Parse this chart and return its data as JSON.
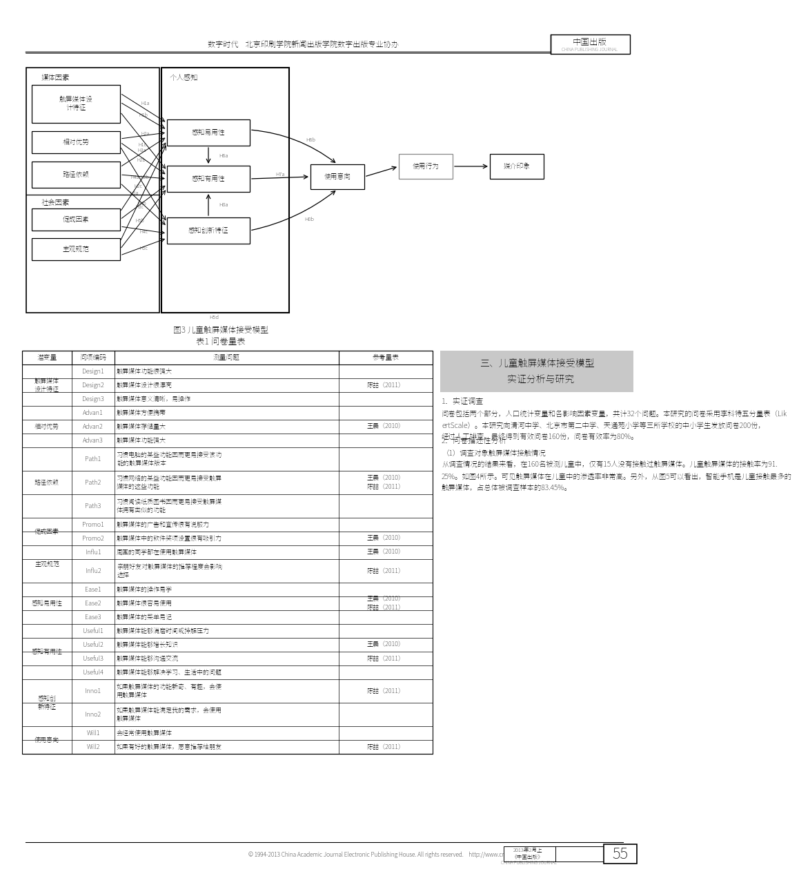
{
  "page_width": 9.2,
  "page_height": 12.49,
  "bg_color": "#ffffff",
  "header_text_left": "数字时代    北京印刷学院新闻出版学院数字出版专业协办",
  "header_text_right": "中国出版",
  "header_sub_right": "CHINA PUBLISHING JOURNAL",
  "diagram_title": "图3 儿童触屏媒体接受模型",
  "table_title": "表1 问卷量表",
  "table_headers": [
    "潜变量",
    "问项编码",
    "测量问题",
    "参考量表"
  ],
  "table_rows": [
    [
      "触屏媒体\n设计特征",
      "Design1",
      "触屏媒体功能很强大",
      ""
    ],
    [
      "",
      "Design2",
      "触屏媒体设计很漂亮",
      "陈喆（2011）"
    ],
    [
      "",
      "Design3",
      "触屏媒体意义清晰，易操作",
      ""
    ],
    [
      "相对优势",
      "Advan1",
      "触屏媒体方便携带",
      ""
    ],
    [
      "",
      "Advan2",
      "触屏媒体存储量大",
      "王晨（2010）"
    ],
    [
      "",
      "Advan3",
      "触屏媒体功能强大",
      ""
    ],
    [
      "路径依赖",
      "Path1",
      "习惯电脑的某些功能因而更易接受该功\n能的触屏媒体版本",
      ""
    ],
    [
      "",
      "Path2",
      "习惯网络的某些功能因而更易接受触屏\n媒体的这些功能",
      "王晨（2010）\n陈喆（2011）"
    ],
    [
      "",
      "Path3",
      "习惯阅读纸质图书因而更易接受触屏媒\n体拥有类似的功能",
      ""
    ],
    [
      "促成因素",
      "Promo1",
      "触屏媒体的广告和宣传很有说服力",
      ""
    ],
    [
      "",
      "Promo2",
      "触屏媒体中的软件奖项设置很有吸引力",
      "王晨（2010）"
    ],
    [
      "主观规范",
      "Influ1",
      "周围的同学都在使用触屏媒体",
      "王晨（2010）"
    ],
    [
      "",
      "Influ2",
      "亲朋好友对触屏媒体的推荐程度会影响\n选择",
      "陈喆（2011）"
    ],
    [
      "感知易用性",
      "Ease1",
      "触屏媒体的操作易学",
      ""
    ],
    [
      "",
      "Ease2",
      "触屏媒体很容易使用",
      "王晨（2010）\n陈喆（2011）"
    ],
    [
      "",
      "Ease3",
      "触屏媒体的菜单易记",
      ""
    ],
    [
      "感知有用性",
      "Useful1",
      "触屏媒体能够消磨时间或排解压力",
      ""
    ],
    [
      "",
      "Useful2",
      "触屏媒体能够增长知识",
      "王晨（2010）"
    ],
    [
      "",
      "Useful3",
      "触屏媒体能够沟通交流",
      "陈喆（2011）"
    ],
    [
      "",
      "Useful4",
      "触屏媒体能够解决学习、生活中的问题",
      ""
    ],
    [
      "感知创\n新特征",
      "Inno1",
      "如果触屏媒体的功能新奇、有趣，会使\n用触屏媒体",
      "陈喆（2011）"
    ],
    [
      "",
      "Inno2",
      "如果触屏媒体能满足我的需求，会使用\n触屏媒体",
      ""
    ],
    [
      "使用意向",
      "Will1",
      "会经常使用触屏媒体",
      ""
    ],
    [
      "",
      "Will2",
      "如果有好的触屏媒体，愿意推荐给朋友",
      "陈喆（2011）"
    ]
  ],
  "right_box_title": "三、儿童触屏媒体接受模型\n    实证分析与研究",
  "right_col_lines": [
    {
      "text": "1．实证调查",
      "indent": 0,
      "style": "normal",
      "size": 8
    },
    {
      "text": "问卷包括两个部分，人口统计变量和各影响因素变量，共计32个问题。本研究的问卷采用李科特五分量表（LikertScale）。本研究向清河中学、北京市第二中学、天通苑小学等三所学校的中小学生发放问卷200份，经过人工排查，最终得到有效问卷160份，问卷有效率为80%。",
      "indent": 0,
      "style": "normal",
      "size": 7.5
    },
    {
      "text": "2．问卷描述性分析",
      "indent": 0,
      "style": "normal",
      "size": 8
    },
    {
      "text": "（1）调查对象触屏媒体接触情况",
      "indent": 0,
      "style": "normal",
      "size": 7.5
    },
    {
      "text": "从调查情况的结果来看，在160名被测儿童中，仅有15人没有接触过触屏媒体。儿童触屏媒体的接触率为91.25%。如图4所示。可见触屏媒体在儿童中的渗透率非常高。另外，从图5可以看出，智能手机是儿童接触最多的触屏媒体，占总体被调查样本的83.45%。",
      "indent": 0,
      "style": "normal",
      "size": 7.5
    }
  ],
  "footer_left": "© 1994-2013 China Academic Journal Electronic Publishing House. All rights reserved.    http://www.cnki.net",
  "footer_page": "55",
  "footer_meta1": "2013年2月上",
  "footer_meta2": "《中国出版》",
  "footer_meta3": "CHINA PUBLISHING JOURNAL"
}
